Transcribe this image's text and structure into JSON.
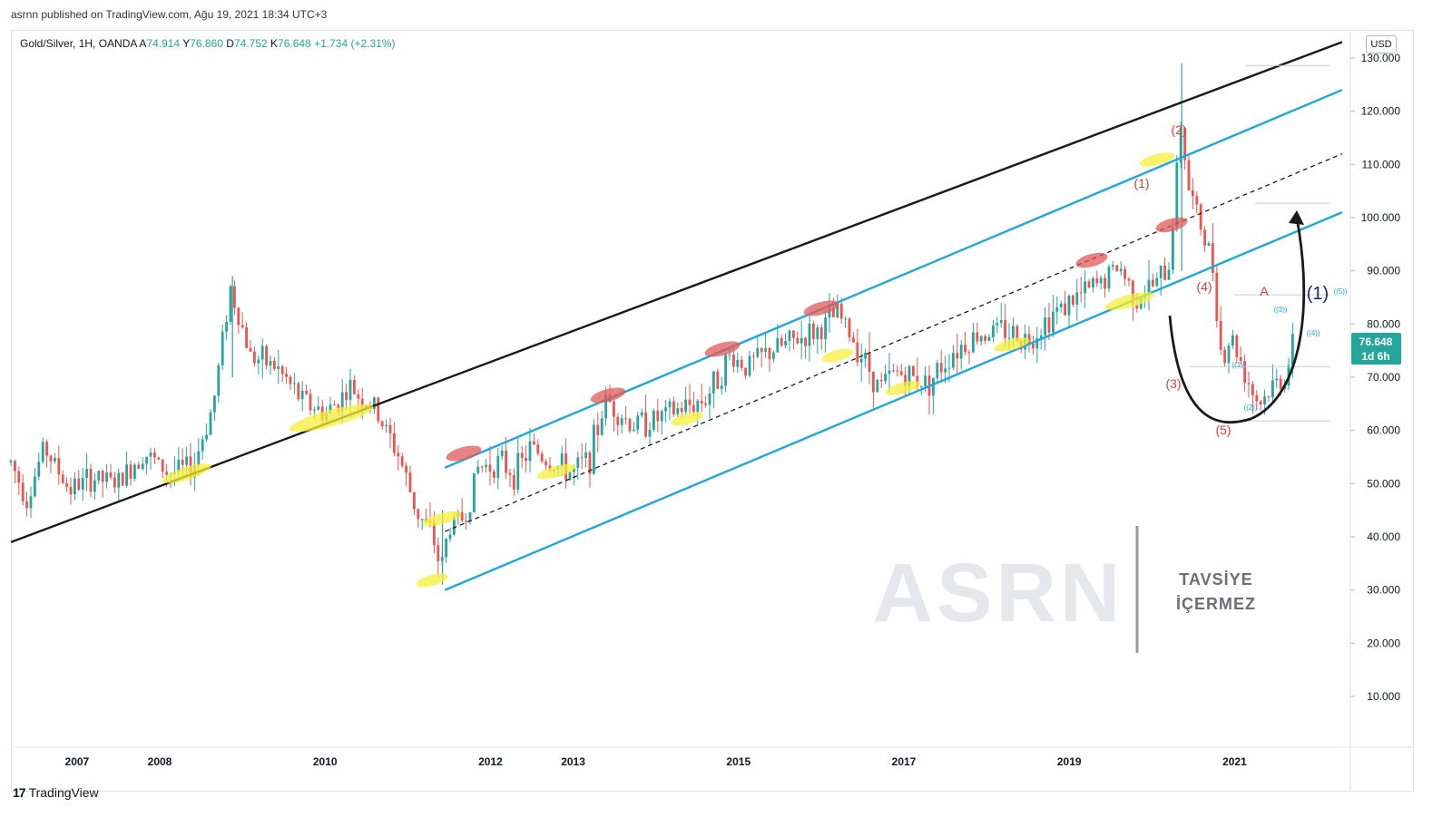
{
  "header": {
    "published_line": "asrnn published on TradingView.com, Ağu 19, 2021 18:34 UTC+3"
  },
  "legend": {
    "symbol": "Gold/Silver, 1H, OANDA",
    "open_label": "A",
    "open_value": "74.914",
    "high_label": "Y",
    "high_value": "76.860",
    "low_label": "D",
    "low_value": "74.752",
    "close_label": "K",
    "close_value": "76.648",
    "change": "+1.734 (+2.31%)"
  },
  "currency_button": "USD",
  "footer": {
    "brand": "TradingView",
    "brand_mark": "17"
  },
  "watermark": {
    "logo_text": "ASRN",
    "line1": "TAVSİYE",
    "line2": "İÇERMEZ"
  },
  "price_tag": {
    "value": "76.648",
    "countdown": "1d 6h",
    "color": "#26a69a"
  },
  "chart_data": {
    "type": "candlestick",
    "symbol": "Gold/Silver",
    "interval": "1H",
    "exchange": "OANDA",
    "y_axis": {
      "ticks": [
        "130.000",
        "120.000",
        "110.000",
        "100.000",
        "90.000",
        "80.000",
        "70.000",
        "60.000",
        "50.000",
        "40.000",
        "30.000",
        "20.000",
        "10.000"
      ],
      "tick_values": [
        130,
        120,
        110,
        100,
        90,
        80,
        70,
        60,
        50,
        40,
        30,
        20,
        10
      ],
      "range": [
        0,
        131
      ],
      "unit": "USD"
    },
    "x_axis": {
      "ticks": [
        "2007",
        "2008",
        "2010",
        "2012",
        "2013",
        "2015",
        "2017",
        "2019",
        "2021"
      ],
      "tick_values": [
        2006.9,
        2007.9,
        2009.9,
        2011.9,
        2012.9,
        2014.9,
        2016.9,
        2018.9,
        2020.9
      ],
      "range": [
        2006.1,
        2022.3
      ]
    },
    "series_path_approx": [
      [
        2006.1,
        54
      ],
      [
        2006.3,
        47
      ],
      [
        2006.5,
        57
      ],
      [
        2006.8,
        49
      ],
      [
        2007.1,
        51
      ],
      [
        2007.4,
        50
      ],
      [
        2007.7,
        56
      ],
      [
        2008.0,
        52
      ],
      [
        2008.3,
        53
      ],
      [
        2008.55,
        65
      ],
      [
        2008.75,
        87
      ],
      [
        2009.0,
        74
      ],
      [
        2009.3,
        72
      ],
      [
        2009.6,
        66
      ],
      [
        2009.9,
        63
      ],
      [
        2010.2,
        68
      ],
      [
        2010.5,
        64
      ],
      [
        2010.8,
        55
      ],
      [
        2011.0,
        45
      ],
      [
        2011.2,
        40
      ],
      [
        2011.3,
        34
      ],
      [
        2011.4,
        42
      ],
      [
        2011.6,
        44
      ],
      [
        2011.75,
        53
      ],
      [
        2012.0,
        54
      ],
      [
        2012.2,
        52
      ],
      [
        2012.4,
        57
      ],
      [
        2012.6,
        54
      ],
      [
        2012.9,
        52
      ],
      [
        2013.1,
        55
      ],
      [
        2013.3,
        66
      ],
      [
        2013.6,
        61
      ],
      [
        2013.9,
        62
      ],
      [
        2014.2,
        64
      ],
      [
        2014.5,
        66
      ],
      [
        2014.8,
        74
      ],
      [
        2015.0,
        72
      ],
      [
        2015.3,
        75
      ],
      [
        2015.6,
        77
      ],
      [
        2015.9,
        79
      ],
      [
        2016.1,
        82
      ],
      [
        2016.4,
        74
      ],
      [
        2016.6,
        68
      ],
      [
        2016.8,
        71
      ],
      [
        2017.0,
        70
      ],
      [
        2017.2,
        69
      ],
      [
        2017.5,
        75
      ],
      [
        2017.8,
        78
      ],
      [
        2018.1,
        79
      ],
      [
        2018.4,
        77
      ],
      [
        2018.7,
        82
      ],
      [
        2019.0,
        85
      ],
      [
        2019.3,
        88
      ],
      [
        2019.5,
        91
      ],
      [
        2019.7,
        85
      ],
      [
        2019.9,
        87
      ],
      [
        2020.1,
        90
      ],
      [
        2020.25,
        118
      ],
      [
        2020.35,
        105
      ],
      [
        2020.5,
        98
      ],
      [
        2020.65,
        90
      ],
      [
        2020.75,
        72
      ],
      [
        2020.85,
        78
      ],
      [
        2021.0,
        72
      ],
      [
        2021.1,
        68
      ],
      [
        2021.2,
        65
      ],
      [
        2021.35,
        68
      ],
      [
        2021.5,
        70
      ],
      [
        2021.63,
        76.6
      ]
    ],
    "last_price": 76.648,
    "trendlines": [
      {
        "style": "solid",
        "color": "#1a1a1a",
        "from": [
          2006.1,
          39
        ],
        "to": [
          2022.2,
          133
        ]
      },
      {
        "style": "solid",
        "color": "#1ea7dc",
        "from": [
          2011.35,
          53
        ],
        "to": [
          2022.2,
          124
        ]
      },
      {
        "style": "solid",
        "color": "#1ea7dc",
        "from": [
          2011.35,
          30
        ],
        "to": [
          2022.2,
          101
        ]
      },
      {
        "style": "dashed",
        "color": "#1a1a1a",
        "from": [
          2011.35,
          41
        ],
        "to": [
          2022.2,
          112
        ]
      }
    ],
    "wave_labels": {
      "red": [
        "(1)",
        "(2)",
        "(3)",
        "(4)",
        "(5)",
        "A"
      ],
      "navy": [
        "(1)"
      ],
      "small_blue": [
        "((1))",
        "((2))",
        "((3))",
        "((4))",
        "((5))"
      ]
    },
    "annotation_colors": {
      "highlight_yellow": "#f7ef3a",
      "highlight_red": "#e05a5a",
      "channel_blue": "#1ea7dc",
      "wave_red": "#e53935",
      "wave_navy": "#1a237e"
    }
  }
}
